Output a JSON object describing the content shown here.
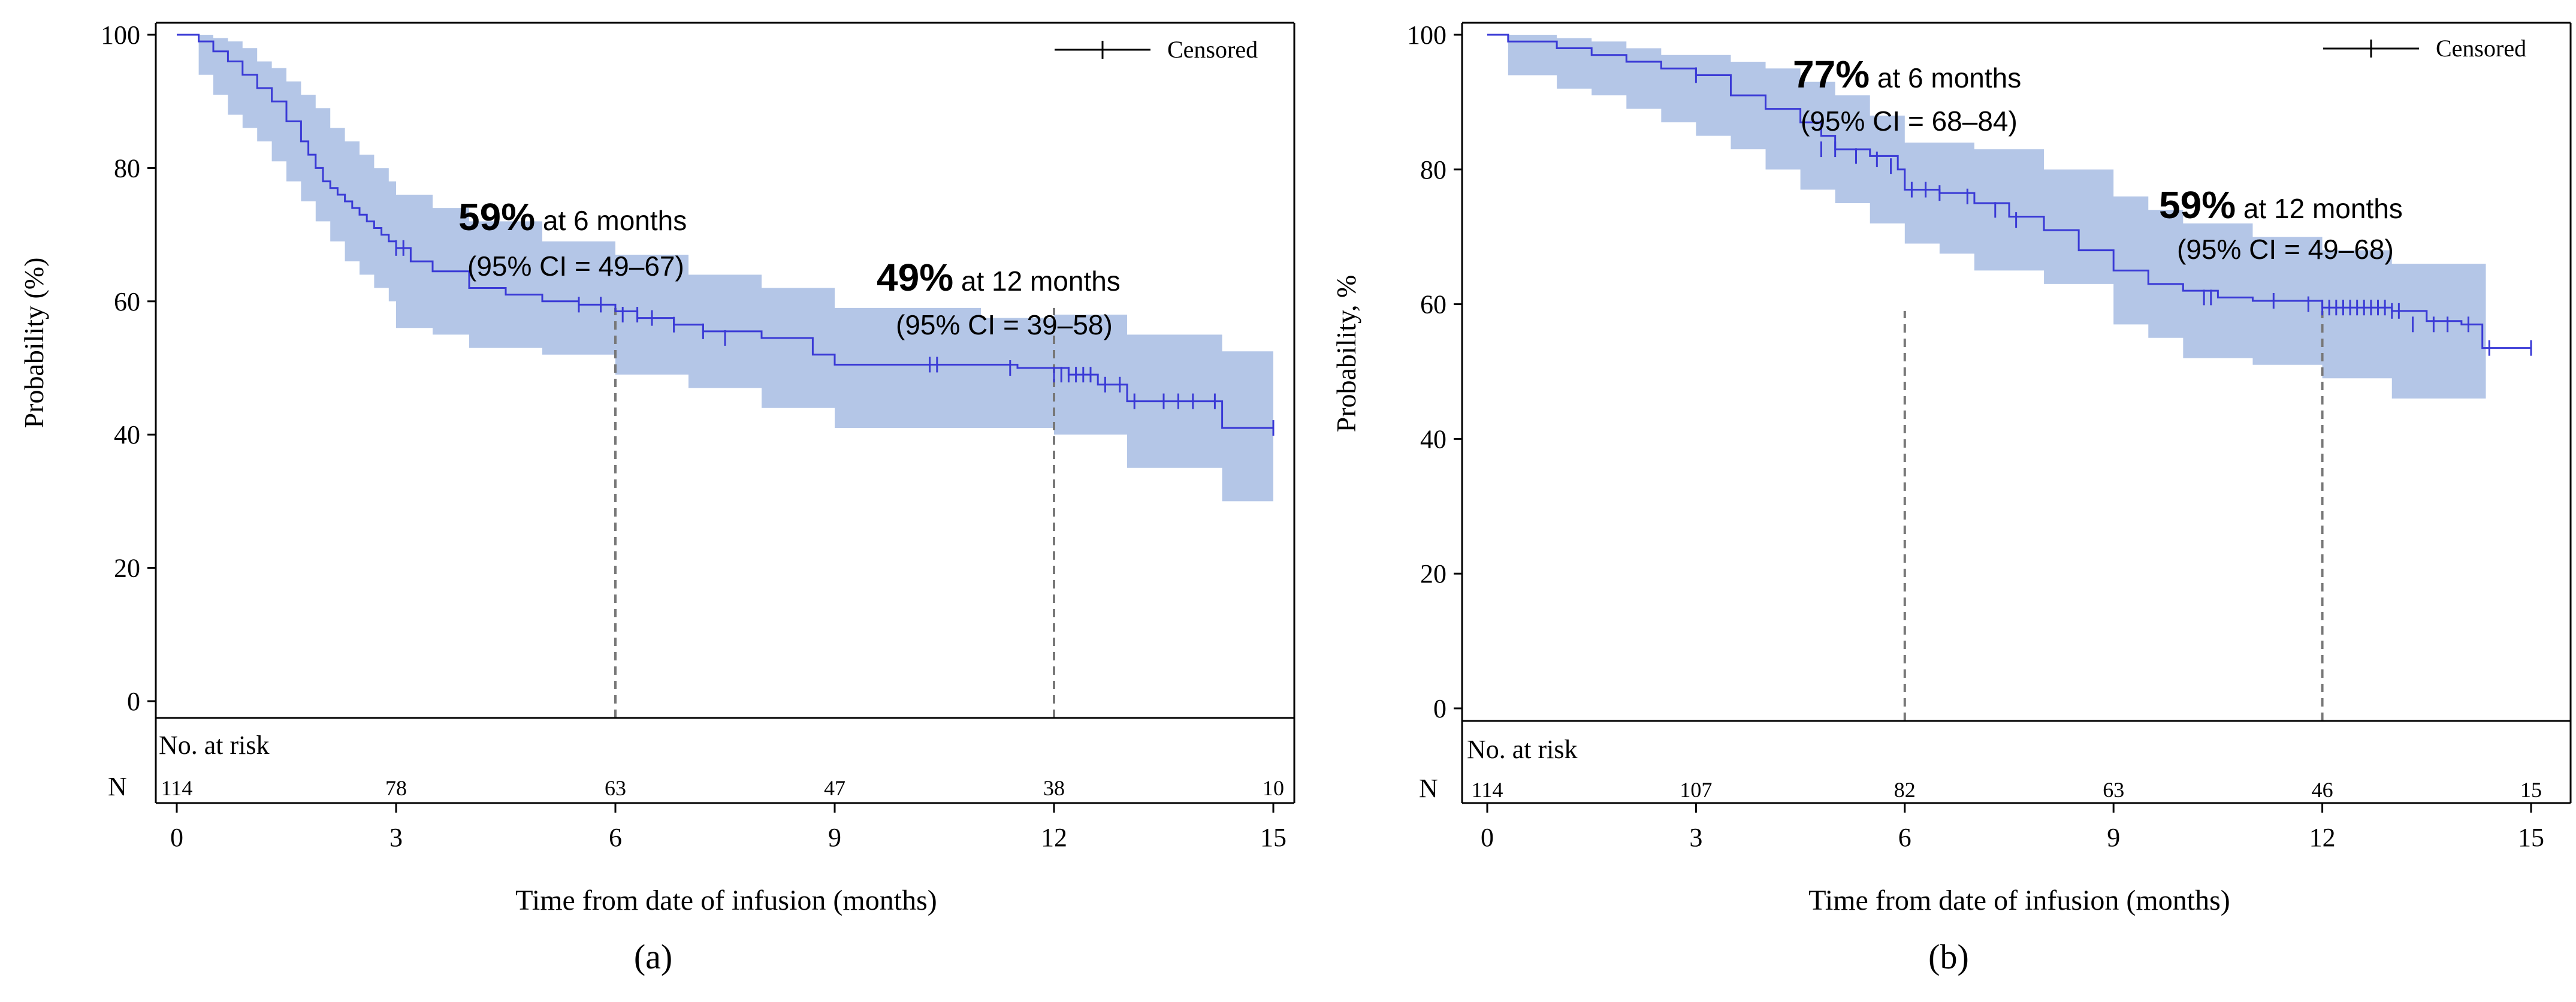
{
  "figure": {
    "panel_a_label": "(a)",
    "panel_b_label": "(b)",
    "colors": {
      "curve": "#3a3ad6",
      "band": "#b4c6e7",
      "refline": "#777777",
      "axis": "#000000"
    }
  },
  "chart_data": [
    {
      "type": "line",
      "panel": "a",
      "xlabel": "Time from date of infusion (months)",
      "ylabel": "Probability (%)",
      "xlim": [
        0,
        15
      ],
      "ylim": [
        0,
        100
      ],
      "xticks": [
        0,
        3,
        6,
        9,
        12,
        15
      ],
      "yticks": [
        0,
        20,
        40,
        60,
        80,
        100
      ],
      "legend": {
        "label": "Censored",
        "position": "top-right"
      },
      "series": [
        {
          "name": "Kaplan-Meier estimate",
          "x": [
            0,
            0.3,
            0.5,
            0.7,
            0.9,
            1.1,
            1.3,
            1.5,
            1.7,
            1.8,
            1.9,
            2.0,
            2.1,
            2.2,
            2.3,
            2.4,
            2.5,
            2.6,
            2.7,
            2.8,
            2.9,
            3.0,
            3.2,
            3.5,
            4.0,
            4.5,
            5.0,
            5.5,
            6.0,
            6.3,
            6.8,
            7.2,
            8.0,
            8.7,
            9.0,
            10.0,
            11.5,
            12.2,
            12.6,
            13.0,
            13.5,
            14.0,
            14.3,
            15.0
          ],
          "y": [
            100,
            99,
            97.5,
            96,
            94,
            92,
            90,
            87,
            84,
            82,
            80,
            78,
            77,
            76,
            75,
            74,
            73,
            72,
            71,
            70,
            69,
            68,
            66,
            64.5,
            62,
            61,
            60,
            59.5,
            58.5,
            57.5,
            56.5,
            55.5,
            54.5,
            52,
            50.5,
            50.5,
            50,
            49,
            47.5,
            45,
            45,
            45,
            41,
            41
          ]
        },
        {
          "name": "95% CI lower",
          "x": [
            0,
            0.3,
            0.5,
            0.7,
            0.9,
            1.1,
            1.3,
            1.5,
            1.7,
            1.9,
            2.1,
            2.3,
            2.5,
            2.7,
            2.9,
            3.0,
            3.5,
            4.0,
            5.0,
            6.0,
            7.0,
            8.0,
            9.0,
            11.0,
            12.0,
            13.0,
            14.3,
            15.0
          ],
          "y": [
            100,
            94,
            91,
            88,
            86,
            84,
            81,
            78,
            75,
            72,
            69,
            66,
            64,
            62,
            60,
            56,
            55,
            53,
            52,
            49,
            47,
            44,
            41,
            41,
            40,
            35,
            30,
            30
          ]
        },
        {
          "name": "95% CI upper",
          "x": [
            0,
            0.3,
            0.5,
            0.7,
            0.9,
            1.1,
            1.3,
            1.5,
            1.7,
            1.9,
            2.1,
            2.3,
            2.5,
            2.7,
            2.9,
            3.0,
            3.5,
            4.0,
            5.0,
            6.0,
            7.0,
            8.0,
            9.0,
            11.0,
            12.0,
            13.0,
            14.3,
            15.0
          ],
          "y": [
            100,
            100,
            99.5,
            99,
            98,
            96,
            95,
            93,
            91,
            89,
            86,
            84,
            82,
            80,
            78,
            76,
            74,
            72,
            69,
            67,
            64,
            62,
            59,
            57.5,
            58,
            55,
            52.5,
            52.5
          ]
        }
      ],
      "censored": {
        "x": [
          3.0,
          3.1,
          5.5,
          5.8,
          6.1,
          6.3,
          6.5,
          6.8,
          7.2,
          7.5,
          10.3,
          10.4,
          11.4,
          12.0,
          12.1,
          12.2,
          12.3,
          12.4,
          12.5,
          12.7,
          12.9,
          13.1,
          13.5,
          13.7,
          13.9,
          14.2,
          15.0
        ],
        "y": [
          68,
          68,
          59.5,
          59.5,
          58,
          58,
          57.5,
          56.5,
          55.5,
          54.5,
          50.5,
          50.5,
          50,
          49,
          49,
          49,
          49,
          49,
          49,
          47.5,
          47.5,
          45,
          45,
          45,
          45,
          45,
          41
        ]
      },
      "annotations": [
        {
          "big": "59%",
          "text": " at 6 months",
          "ci": "(95% CI = 49–67)"
        },
        {
          "big": "49%",
          "text": " at 12 months",
          "ci": "(95% CI = 39–58)"
        }
      ],
      "reference_lines_x": [
        6,
        12
      ],
      "risk_table": {
        "title": "No. at risk",
        "row_label": "N",
        "x": [
          0,
          3,
          6,
          9,
          12,
          15
        ],
        "values": [
          "114",
          "78",
          "63",
          "47",
          "38",
          "10"
        ]
      }
    },
    {
      "type": "line",
      "panel": "b",
      "xlabel": "Time from date of infusion (months)",
      "ylabel": "Probability, %",
      "xlim": [
        0,
        15
      ],
      "ylim": [
        0,
        100
      ],
      "xticks": [
        0,
        3,
        6,
        9,
        12,
        15
      ],
      "yticks": [
        0,
        20,
        40,
        60,
        80,
        100
      ],
      "legend": {
        "label": "Censored",
        "position": "top-right"
      },
      "series": [
        {
          "name": "Kaplan-Meier estimate",
          "x": [
            0,
            0.3,
            1.0,
            1.5,
            2.0,
            2.5,
            3.0,
            3.5,
            4.0,
            4.5,
            4.8,
            5.0,
            5.5,
            5.9,
            6.0,
            6.5,
            7.0,
            7.5,
            8.0,
            8.5,
            9.0,
            9.5,
            10.0,
            10.5,
            11.0,
            12.0,
            13.0,
            13.5,
            14.0,
            14.3,
            15.0
          ],
          "y": [
            100,
            99,
            98,
            97,
            96,
            95,
            94,
            91,
            89,
            87,
            85,
            83,
            82,
            80,
            77,
            76.5,
            75,
            73,
            71,
            68,
            65,
            63,
            62,
            61,
            60.5,
            59.5,
            59,
            57.5,
            57,
            53.5,
            53.5
          ]
        },
        {
          "name": "95% CI lower",
          "x": [
            0,
            0.3,
            1.0,
            1.5,
            2.0,
            2.5,
            3.0,
            3.5,
            4.0,
            4.5,
            5.0,
            5.5,
            6.0,
            6.5,
            7.0,
            8.0,
            9.0,
            9.5,
            10.0,
            11.0,
            12.0,
            13.0,
            14.3,
            14.35
          ],
          "y": [
            100,
            94,
            92,
            91,
            89,
            87,
            85,
            83,
            80,
            77,
            75,
            72,
            69,
            67.5,
            65,
            63,
            57,
            55,
            52,
            51,
            49,
            46,
            46,
            41
          ]
        },
        {
          "name": "95% CI upper",
          "x": [
            0,
            0.3,
            1.0,
            1.5,
            2.0,
            2.5,
            3.0,
            3.5,
            4.0,
            4.5,
            5.0,
            5.5,
            6.0,
            6.5,
            7.0,
            8.0,
            9.0,
            9.5,
            10.0,
            11.0,
            12.0,
            13.0,
            14.3,
            14.35
          ],
          "y": [
            100,
            100,
            99.5,
            99,
            98,
            97,
            97,
            96,
            95,
            93,
            91,
            88,
            84,
            84,
            83,
            80,
            76,
            74,
            72,
            70,
            68,
            66,
            66,
            66
          ]
        }
      ],
      "censored": {
        "x": [
          3.0,
          4.8,
          5.0,
          5.3,
          5.6,
          5.8,
          6.1,
          6.3,
          6.5,
          6.9,
          7.3,
          7.6,
          10.3,
          10.4,
          11.3,
          11.8,
          12.0,
          12.1,
          12.2,
          12.3,
          12.4,
          12.5,
          12.6,
          12.7,
          12.8,
          12.9,
          13.0,
          13.1,
          13.3,
          13.6,
          13.8,
          14.1,
          14.4,
          15.0
        ],
        "y": [
          94,
          83,
          83,
          82,
          81.5,
          80.5,
          77,
          77,
          76.5,
          76,
          74,
          72.5,
          61,
          61,
          60.5,
          60,
          59.5,
          59.5,
          59.5,
          59.5,
          59.5,
          59.5,
          59.5,
          59.5,
          59.5,
          59.5,
          59,
          59,
          57,
          57,
          57,
          57,
          53.5,
          53.5
        ]
      },
      "annotations": [
        {
          "big": "77%",
          "text": " at 6 months",
          "ci": "(95% CI = 68–84)"
        },
        {
          "big": "59%",
          "text": " at 12 months",
          "ci": "(95% CI = 49–68)"
        }
      ],
      "reference_lines_x": [
        6,
        12
      ],
      "risk_table": {
        "title": "No. at risk",
        "row_label": "N",
        "x": [
          0,
          3,
          6,
          9,
          12,
          15
        ],
        "values": [
          "114",
          "107",
          "82",
          "63",
          "46",
          "15"
        ]
      }
    }
  ]
}
